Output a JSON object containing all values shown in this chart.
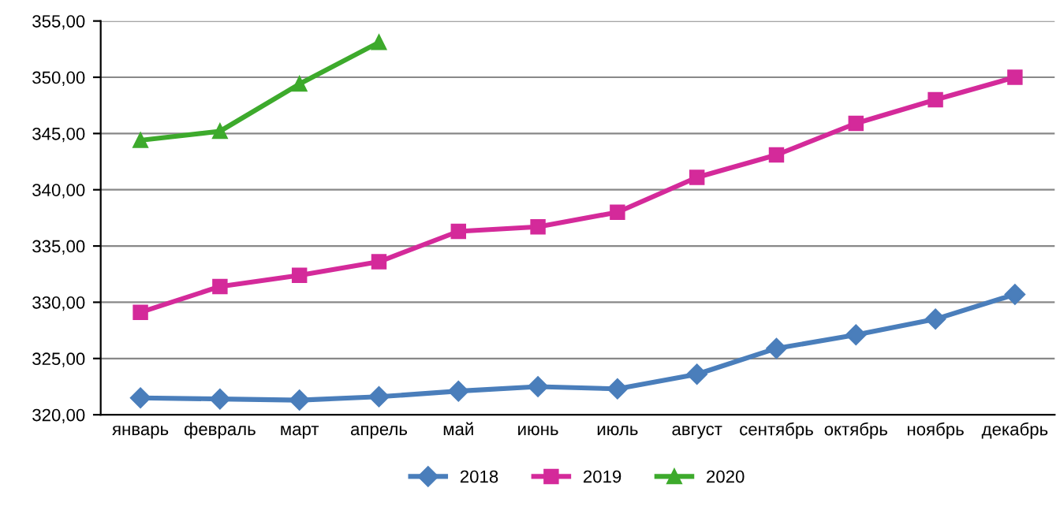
{
  "chart_data": {
    "type": "line",
    "categories": [
      "январь",
      "февраль",
      "март",
      "апрель",
      "май",
      "июнь",
      "июль",
      "август",
      "сентябрь",
      "октябрь",
      "ноябрь",
      "декабрь"
    ],
    "series": [
      {
        "name": "2018",
        "color": "#4a7ebb",
        "marker": "diamond",
        "values": [
          321.5,
          321.4,
          321.3,
          321.6,
          322.1,
          322.5,
          322.3,
          323.6,
          325.9,
          327.1,
          328.5,
          330.7
        ]
      },
      {
        "name": "2019",
        "color": "#d42a9a",
        "marker": "square",
        "values": [
          329.1,
          331.4,
          332.4,
          333.6,
          336.3,
          336.7,
          338.0,
          341.1,
          343.1,
          345.9,
          348.0,
          350.0
        ]
      },
      {
        "name": "2020",
        "color": "#3daa2c",
        "marker": "triangle",
        "values": [
          344.4,
          345.2,
          349.4,
          353.1,
          null,
          null,
          null,
          null,
          null,
          null,
          null,
          null
        ]
      }
    ],
    "ylim": [
      320,
      355
    ],
    "yticks": [
      {
        "value": 320,
        "label": "320,00"
      },
      {
        "value": 325,
        "label": "325,00"
      },
      {
        "value": 330,
        "label": "330,00"
      },
      {
        "value": 335,
        "label": "335,00"
      },
      {
        "value": 340,
        "label": "340,00"
      },
      {
        "value": 345,
        "label": "345,00"
      },
      {
        "value": 350,
        "label": "350,00"
      },
      {
        "value": 355,
        "label": "355,00"
      }
    ],
    "grid": "y",
    "legend": "bottom",
    "line_style": "solid"
  }
}
